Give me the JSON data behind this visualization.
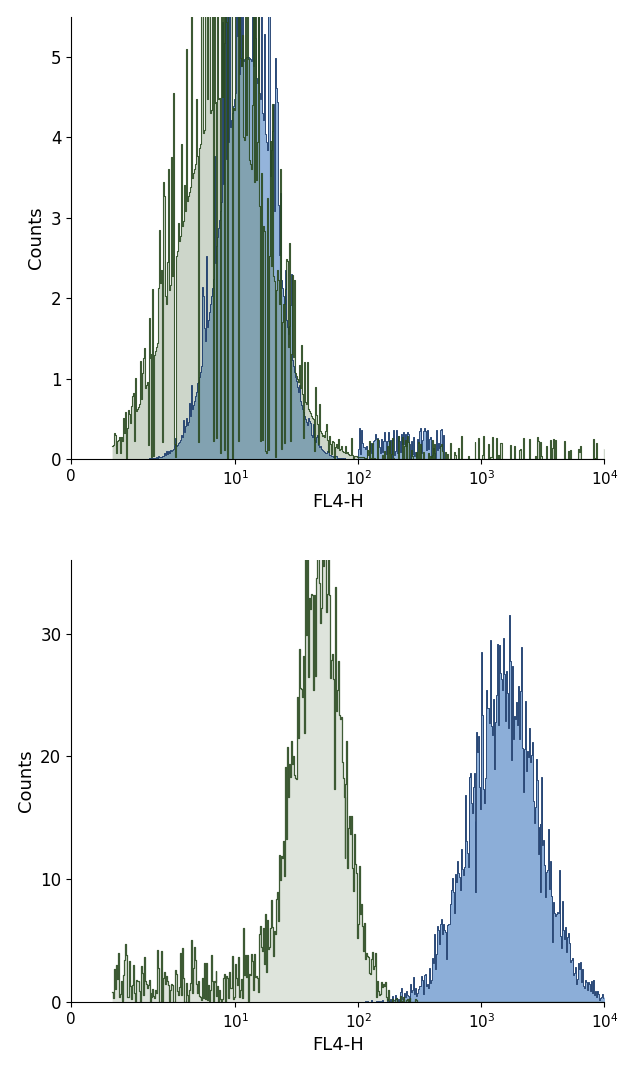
{
  "plot1": {
    "xlabel": "FL4-H",
    "ylabel": "Counts",
    "ylim": [
      0,
      5.5
    ],
    "yticks": [
      0,
      1,
      2,
      3,
      4,
      5
    ],
    "xlim": [
      0,
      10000
    ]
  },
  "plot2": {
    "xlabel": "FL4-H",
    "ylabel": "Counts",
    "ylim": [
      0,
      36
    ],
    "yticks": [
      0,
      10,
      20,
      30
    ],
    "xlim": [
      0,
      10000
    ]
  },
  "blue_fill_color": "#5b8cc8",
  "blue_line_color": "#1a3a6b",
  "green_line_color": "#2a4a20",
  "green_fill_color": "#5a7a50",
  "background_color": "#ffffff",
  "figsize": [
    6.35,
    10.71
  ],
  "dpi": 100
}
